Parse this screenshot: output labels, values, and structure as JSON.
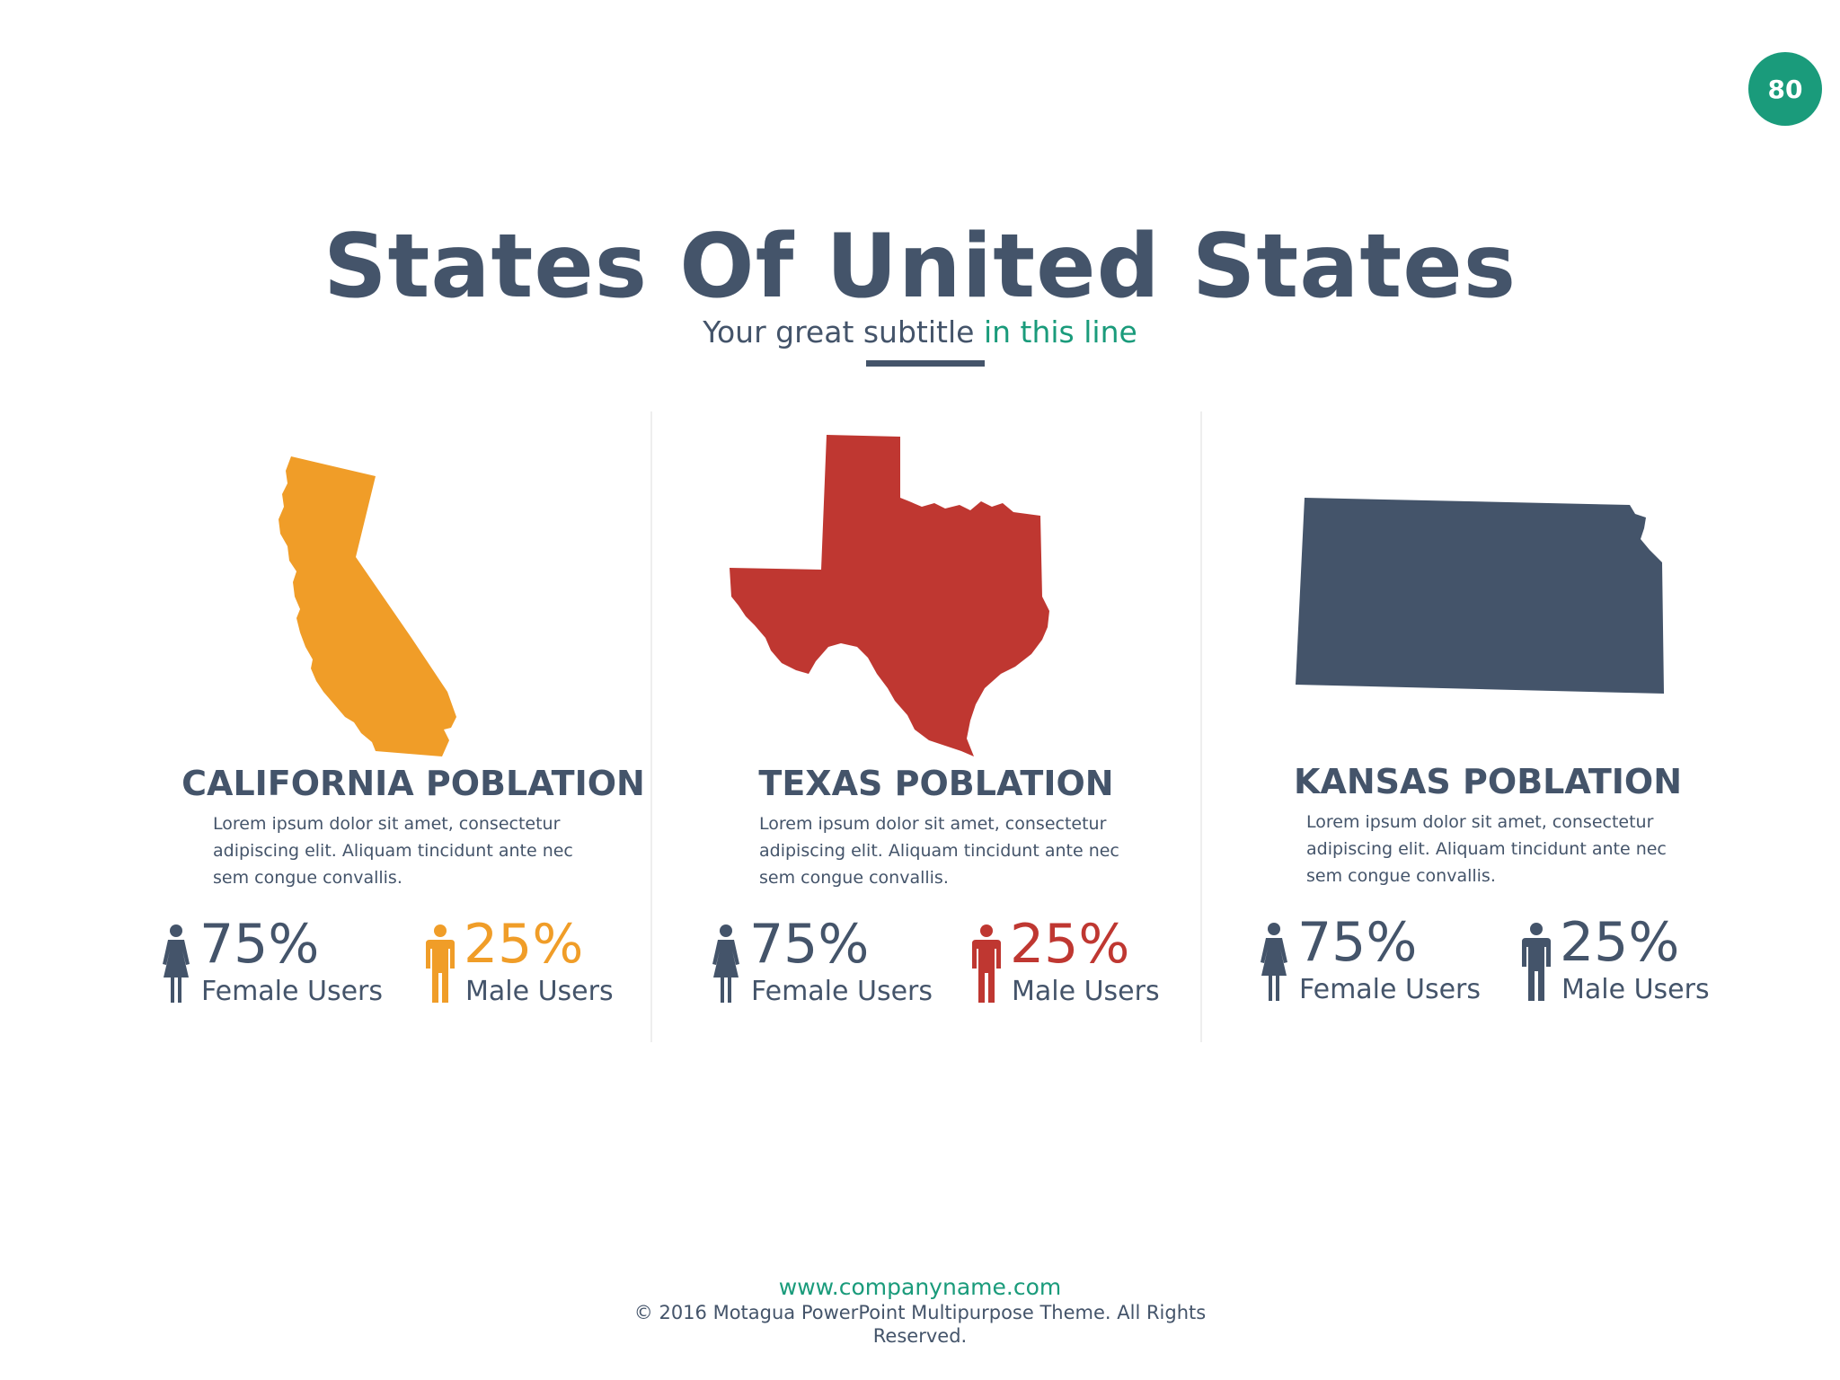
{
  "slide": {
    "page_number": "80"
  },
  "header": {
    "title": "States Of United States",
    "subtitle_main": "Your great subtitle",
    "subtitle_accent": "in this line"
  },
  "colors": {
    "accent": "#1a9b7b",
    "dark": "#44546a",
    "california": "#f09d28",
    "texas": "#bf3731",
    "kansas": "#44546a"
  },
  "panels": [
    {
      "state_icon": "california-map-icon",
      "title": "CALIFORNIA POBLATION",
      "description": "Lorem ipsum dolor sit amet, consectetur adipiscing elit. Aliquam tincidunt ante nec sem congue convallis.",
      "female": {
        "value": "75%",
        "label": "Female Users"
      },
      "male": {
        "value": "25%",
        "label": "Male Users"
      }
    },
    {
      "state_icon": "texas-map-icon",
      "title": "TEXAS POBLATION",
      "description": "Lorem ipsum dolor sit amet, consectetur adipiscing elit. Aliquam tincidunt ante nec sem congue convallis.",
      "female": {
        "value": "75%",
        "label": "Female Users"
      },
      "male": {
        "value": "25%",
        "label": "Male Users"
      }
    },
    {
      "state_icon": "kansas-map-icon",
      "title": "KANSAS POBLATION",
      "description": "Lorem ipsum dolor sit amet, consectetur adipiscing elit. Aliquam tincidunt ante nec sem congue convallis.",
      "female": {
        "value": "75%",
        "label": "Female Users"
      },
      "male": {
        "value": "25%",
        "label": "Male Users"
      }
    }
  ],
  "footer": {
    "url": "www.companyname.com",
    "copyright": "© 2016 Motagua PowerPoint Multipurpose Theme. All Rights Reserved."
  }
}
